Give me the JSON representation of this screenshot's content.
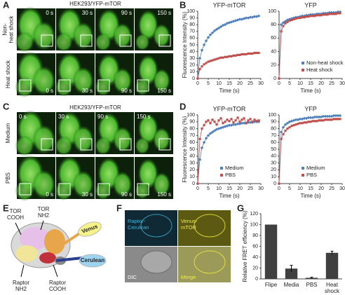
{
  "panel_labels": [
    "A",
    "B",
    "C",
    "D",
    "E",
    "F",
    "G"
  ],
  "panel_a": {
    "title": "HEK293/YFP-mTOR",
    "rows": [
      [
        "Non-",
        "heat shock"
      ],
      [
        "Heat shock"
      ]
    ],
    "times": [
      "0 s",
      "30 s",
      "90 s",
      "150 s"
    ]
  },
  "panel_c": {
    "title": "HEK293/YFP-mTOR",
    "rows": [
      [
        "Medium"
      ],
      [
        "PBS"
      ]
    ],
    "times": [
      "0 s",
      "30 s",
      "90 s",
      "150 s"
    ]
  },
  "panel_e": {
    "labels": [
      [
        "TOR",
        "COOH"
      ],
      [
        "TOR",
        "NH2"
      ],
      [
        "Raptor",
        "NH2"
      ],
      [
        "Raptor",
        "COOH"
      ],
      [
        "Venus"
      ],
      [
        "Cerulean"
      ]
    ]
  },
  "panel_f": {
    "labels": [
      [
        "Raptor-",
        "Cerulean"
      ],
      [
        "Venus-",
        "mTOR"
      ],
      [
        "DIC"
      ],
      [
        "Merge"
      ]
    ]
  },
  "chart_data": [
    {
      "type": "line",
      "title": "YFP-mTOR",
      "x_label": "Time (s)",
      "y_label": "Fluorescence Intensity (%)",
      "x": [
        0,
        1,
        2,
        3,
        4,
        5,
        6,
        7,
        8,
        9,
        10,
        11,
        12,
        13,
        14,
        15,
        16,
        17,
        18,
        19,
        20,
        21,
        22,
        23,
        24,
        25,
        26,
        27,
        28,
        29
      ],
      "xlim": [
        0,
        30
      ],
      "xticks": [
        0,
        5,
        10,
        15,
        20,
        25,
        30
      ],
      "ylim": [
        0,
        100
      ],
      "yticks": [
        0,
        10,
        20,
        30,
        40,
        50,
        60,
        70,
        80,
        90,
        100
      ],
      "series": [
        {
          "name": "Non-heat shock",
          "color": "#4f81bd",
          "values": [
            0,
            30,
            42,
            50,
            56,
            61,
            65,
            68,
            71,
            73,
            75,
            77,
            79,
            80,
            82,
            83,
            84,
            85,
            86,
            87,
            88,
            88,
            89,
            90,
            90,
            91,
            91,
            92,
            92,
            93
          ]
        },
        {
          "name": "Heat shock",
          "color": "#c0504d",
          "values": [
            0,
            14,
            18,
            21,
            23,
            25,
            26,
            27,
            28,
            29,
            30,
            31,
            31,
            32,
            32,
            33,
            33,
            34,
            34,
            35,
            35,
            36,
            36,
            36,
            37,
            37,
            37,
            38,
            38,
            38
          ]
        }
      ]
    },
    {
      "type": "line",
      "title": "YFP",
      "x_label": "Time (s)",
      "x": [
        0,
        1,
        2,
        3,
        4,
        5,
        6,
        7,
        8,
        9,
        10,
        11,
        12,
        13,
        14,
        15,
        16,
        17,
        18,
        19,
        20,
        21,
        22,
        23,
        24,
        25,
        26,
        27,
        28,
        29
      ],
      "xlim": [
        0,
        30
      ],
      "xticks": [
        0,
        5,
        10,
        15,
        20,
        25,
        30
      ],
      "ylim": [
        0,
        100
      ],
      "yticks": [
        0,
        20,
        40,
        60,
        80,
        100
      ],
      "legend": "lower right",
      "series": [
        {
          "name": "Non-heat shock",
          "color": "#4f81bd",
          "values": [
            0,
            80,
            83,
            85,
            87,
            88,
            89,
            90,
            91,
            91,
            92,
            93,
            93,
            94,
            94,
            95,
            95,
            95,
            96,
            96,
            96,
            97,
            97,
            97,
            98,
            98,
            98,
            98,
            99,
            99
          ]
        },
        {
          "name": "Heat shock",
          "color": "#c0504d",
          "values": [
            0,
            70,
            78,
            82,
            84,
            86,
            87,
            88,
            89,
            90,
            90,
            91,
            91,
            92,
            92,
            93,
            93,
            93,
            94,
            94,
            94,
            95,
            95,
            95,
            96,
            96,
            96,
            96,
            97,
            97
          ]
        }
      ]
    },
    {
      "type": "line",
      "title": "YFP-mTOR",
      "x_label": "Time (s)",
      "y_label": "Fluorescence Intensity (%)",
      "x": [
        0,
        1,
        2,
        3,
        4,
        5,
        6,
        7,
        8,
        9,
        10,
        11,
        12,
        13,
        14,
        15,
        16,
        17,
        18,
        19,
        20,
        21,
        22,
        23,
        24,
        25,
        26,
        27,
        28,
        29
      ],
      "xlim": [
        0,
        30
      ],
      "xticks": [
        0,
        5,
        10,
        15,
        20,
        25,
        30
      ],
      "ylim": [
        0,
        100
      ],
      "yticks": [
        0,
        10,
        20,
        30,
        40,
        50,
        60,
        70,
        80,
        90,
        100
      ],
      "legend": "lower right",
      "series": [
        {
          "name": "Medium",
          "color": "#4f81bd",
          "values": [
            0,
            35,
            52,
            60,
            66,
            70,
            73,
            75,
            77,
            79,
            80,
            81,
            82,
            83,
            84,
            85,
            85,
            86,
            86,
            87,
            87,
            88,
            88,
            88,
            89,
            89,
            89,
            90,
            90,
            90
          ]
        },
        {
          "name": "PBS",
          "color": "#c0504d",
          "values": [
            0,
            65,
            80,
            85,
            90,
            92,
            88,
            93,
            90,
            86,
            92,
            95,
            88,
            90,
            93,
            91,
            94,
            89,
            92,
            96,
            90,
            93,
            95,
            88,
            92,
            94,
            90,
            93,
            91,
            92
          ]
        }
      ]
    },
    {
      "type": "line",
      "title": "YFP",
      "x_label": "Time (s)",
      "x": [
        0,
        1,
        2,
        3,
        4,
        5,
        6,
        7,
        8,
        9,
        10,
        11,
        12,
        13,
        14,
        15,
        16,
        17,
        18,
        19,
        20,
        21,
        22,
        23,
        24,
        25,
        26,
        27,
        28,
        29
      ],
      "xlim": [
        0,
        30
      ],
      "xticks": [
        0,
        5,
        10,
        15,
        20,
        25,
        30
      ],
      "ylim": [
        0,
        100
      ],
      "yticks": [
        0,
        10,
        20,
        30,
        40,
        50,
        60,
        70,
        80,
        90,
        100
      ],
      "legend": "lower right",
      "series": [
        {
          "name": "Medium",
          "color": "#4f81bd",
          "values": [
            0,
            75,
            82,
            86,
            88,
            90,
            91,
            92,
            93,
            93,
            94,
            94,
            95,
            95,
            96,
            96,
            96,
            97,
            97,
            97,
            97,
            98,
            98,
            98,
            98,
            98,
            99,
            99,
            99,
            99
          ]
        },
        {
          "name": "PBS",
          "color": "#c0504d",
          "values": [
            0,
            65,
            72,
            77,
            80,
            82,
            84,
            85,
            86,
            87,
            88,
            88,
            89,
            89,
            90,
            90,
            91,
            91,
            91,
            92,
            92,
            92,
            93,
            93,
            93,
            93,
            94,
            94,
            94,
            94
          ]
        }
      ]
    },
    {
      "type": "bar",
      "y_label": "Relative FRET efficiency (%)",
      "categories": [
        "Flipe",
        "Media",
        "PBS",
        "Heat shock"
      ],
      "values": [
        100,
        19,
        2,
        48
      ],
      "errors": [
        null,
        6,
        1,
        3
      ],
      "color": "#404040",
      "ylim": [
        0,
        120
      ],
      "yticks": [
        0,
        20,
        40,
        60,
        80,
        100,
        120
      ]
    }
  ]
}
